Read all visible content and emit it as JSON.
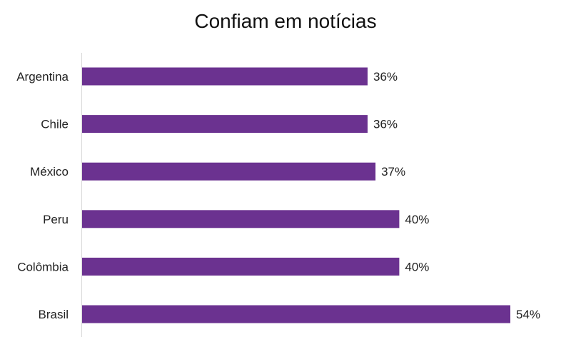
{
  "chart_data": {
    "type": "bar",
    "orientation": "horizontal",
    "title": "Confiam em notícias",
    "xlabel": "",
    "ylabel": "",
    "categories": [
      "Argentina",
      "Chile",
      "México",
      "Peru",
      "Colômbia",
      "Brasil"
    ],
    "values": [
      36,
      36,
      37,
      40,
      40,
      54
    ],
    "value_labels": [
      "36%",
      "36%",
      "37%",
      "40%",
      "40%",
      "54%"
    ],
    "unit": "%",
    "xlim": [
      0,
      60
    ],
    "grid": false,
    "legend": "none",
    "bar_color": "#6B3290"
  }
}
